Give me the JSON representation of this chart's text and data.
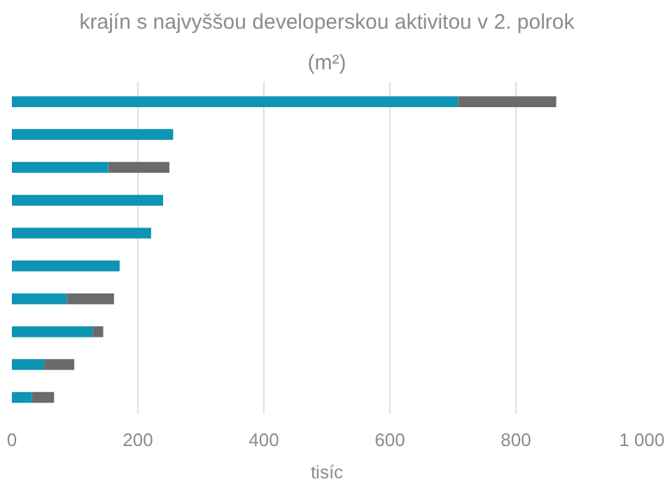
{
  "chart_data": {
    "type": "bar",
    "orientation": "horizontal",
    "stacked": true,
    "title": "krajín s najvyššou developerskou aktivitou v 2. polrok",
    "subtitle": "(m²)",
    "xlabel": "tisíc",
    "categories": [
      null,
      null,
      null,
      null,
      null,
      null,
      null,
      null,
      null,
      null
    ],
    "series": [
      {
        "color": "#0e94b4",
        "values": [
          708,
          256,
          153,
          240,
          221,
          171,
          87,
          128,
          51,
          32
        ]
      },
      {
        "color": "#6b6b6b",
        "values": [
          156,
          0,
          97,
          0,
          0,
          0,
          75,
          17,
          48,
          35
        ]
      }
    ],
    "xlim": [
      0,
      1000
    ],
    "xticks": [
      0,
      200,
      400,
      600,
      800,
      {
        "value": 1000,
        "label": "1 000"
      }
    ],
    "grid": "x"
  }
}
